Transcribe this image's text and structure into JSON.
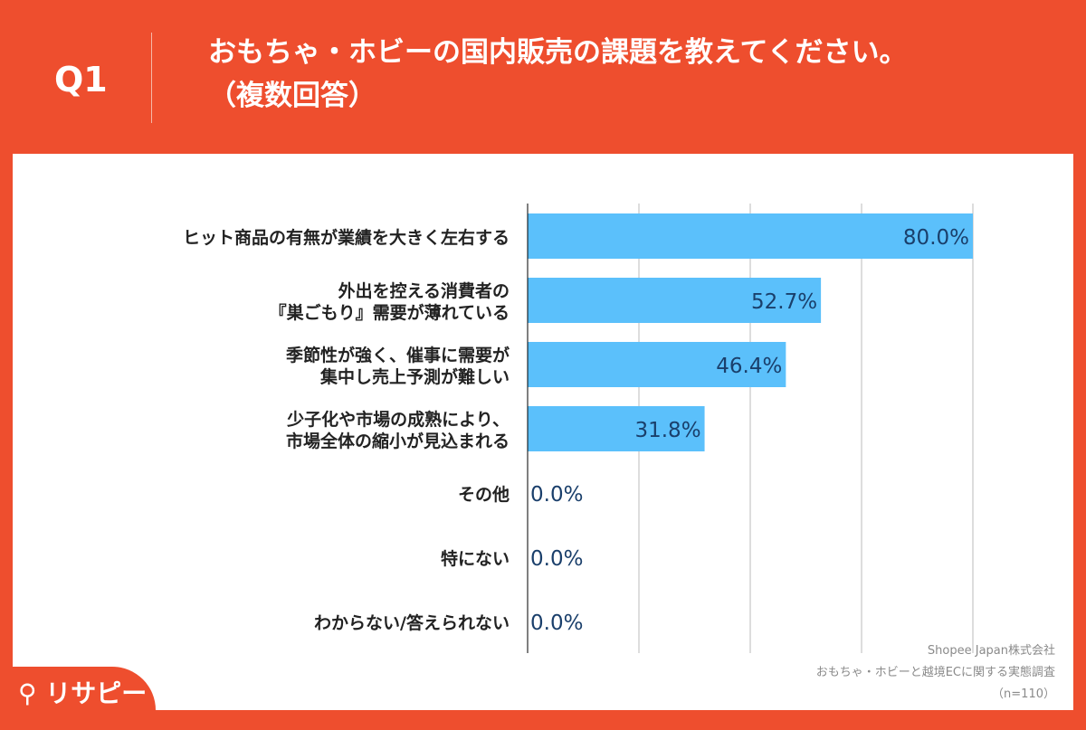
{
  "header": {
    "q_label": "Q1",
    "title_line1": "おもちゃ・ホビーの国内販売の課題を教えてください。",
    "title_line2": "（複数回答）"
  },
  "source": {
    "line1": "Shopee Japan株式会社",
    "line2": "おもちゃ・ホビーと越境ECに関する実態調査",
    "line3": "（n=110）"
  },
  "logo": {
    "text": "リサピー"
  },
  "colors": {
    "background": "#EE4E2E",
    "bar": "#5BC0FB",
    "value_text": "#1A3F6B"
  },
  "chart_data": {
    "type": "bar",
    "orientation": "horizontal",
    "categories": [
      [
        "ヒット商品の有無が業績を大きく左右する"
      ],
      [
        "外出を控える消費者の",
        "『巣ごもり』需要が薄れている"
      ],
      [
        "季節性が強く、催事に需要が",
        "集中し売上予測が難しい"
      ],
      [
        "少子化や市場の成熟により、",
        "市場全体の縮小が見込まれる"
      ],
      [
        "その他"
      ],
      [
        "特にない"
      ],
      [
        "わからない/答えられない"
      ]
    ],
    "values": [
      80.0,
      52.7,
      46.4,
      31.8,
      0.0,
      0.0,
      0.0
    ],
    "value_labels": [
      "80.0%",
      "52.7%",
      "46.4%",
      "31.8%",
      "0.0%",
      "0.0%",
      "0.0%"
    ],
    "xlim": [
      0,
      80
    ],
    "grid": true,
    "gridlines": [
      20,
      40,
      60,
      80
    ]
  }
}
